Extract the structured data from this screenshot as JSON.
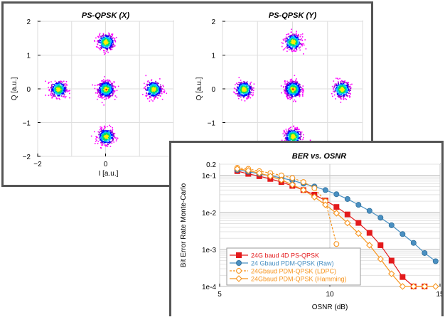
{
  "chart_data": [
    {
      "type": "scatter",
      "title": "PS-QPSK (X)",
      "xlabel": "I [a.u.]",
      "ylabel": "Q [a.u.]",
      "xlim": [
        -2,
        2
      ],
      "ylim": [
        -2,
        2
      ],
      "xticks": [
        "−2",
        "0"
      ],
      "yticks": [
        "2",
        "1",
        "0",
        "−1",
        "−2"
      ],
      "clusters": [
        {
          "x": 0,
          "y": 0,
          "relative_density": 1.0
        },
        {
          "x": 0,
          "y": 1.4,
          "relative_density": 0.6
        },
        {
          "x": 0,
          "y": -1.4,
          "relative_density": 0.6
        },
        {
          "x": -1.4,
          "y": 0,
          "relative_density": 0.6
        },
        {
          "x": 1.4,
          "y": 0,
          "relative_density": 0.6
        }
      ]
    },
    {
      "type": "scatter",
      "title": "PS-QPSK (Y)",
      "xlabel": "",
      "ylabel": "Q [a.u.]",
      "xlim": [
        -2,
        2
      ],
      "ylim": [
        -2,
        2
      ],
      "yticks": [
        "2",
        "1",
        "0",
        "−1"
      ],
      "clusters": [
        {
          "x": 0,
          "y": 0,
          "relative_density": 1.0
        },
        {
          "x": 0,
          "y": 1.4,
          "relative_density": 0.6
        },
        {
          "x": 0,
          "y": -1.4,
          "relative_density": 0.6
        },
        {
          "x": -1.4,
          "y": 0,
          "relative_density": 0.6
        },
        {
          "x": 1.4,
          "y": 0,
          "relative_density": 0.6
        }
      ]
    },
    {
      "type": "line",
      "title": "BER vs. OSNR",
      "xlabel": "OSNR (dB)",
      "ylabel": "Bit Error Rate Monte-Carlo",
      "xlim": [
        5,
        15
      ],
      "ylim": [
        0.0001,
        0.2
      ],
      "yscale": "log",
      "xticks": [
        "5",
        "10",
        "15"
      ],
      "yticks": [
        "0.2",
        "1e-1",
        "1e-2",
        "1e-3",
        "1e-4"
      ],
      "legend_position": "bottom-left",
      "series": [
        {
          "name": "24G baud 4D PS-QPSK",
          "color": "#e31a1c",
          "marker": "square",
          "x": [
            5.8,
            6.3,
            6.8,
            7.3,
            7.8,
            8.3,
            8.8,
            9.3,
            9.8,
            10.3,
            10.8,
            11.3,
            11.8,
            12.3,
            12.8,
            13.3,
            13.8,
            14.3
          ],
          "y": [
            0.13,
            0.11,
            0.095,
            0.08,
            0.066,
            0.052,
            0.04,
            0.03,
            0.021,
            0.014,
            0.0088,
            0.0052,
            0.0028,
            0.0013,
            0.0005,
            0.00018,
            0.0001,
            0.0001
          ]
        },
        {
          "name": "24 Gbaud PDM-QPSK (Raw)",
          "color": "#4a90c2",
          "marker": "circle",
          "x": [
            5.8,
            6.3,
            6.8,
            7.3,
            7.8,
            8.3,
            8.8,
            9.3,
            9.8,
            10.3,
            10.8,
            11.3,
            11.8,
            12.3,
            12.8,
            13.3,
            13.8,
            14.3,
            14.8
          ],
          "y": [
            0.14,
            0.125,
            0.11,
            0.098,
            0.085,
            0.073,
            0.06,
            0.05,
            0.04,
            0.031,
            0.023,
            0.016,
            0.011,
            0.0072,
            0.0045,
            0.0026,
            0.0015,
            0.0008,
            0.00048
          ]
        },
        {
          "name": "24Gbaud PDM-QPSK (LDPC)",
          "color": "#f7941d",
          "marker": "circle-open",
          "x": [
            5.8,
            6.3,
            6.8,
            7.3,
            7.8,
            8.3,
            8.8,
            9.3,
            9.8,
            10.3
          ],
          "y": [
            0.16,
            0.15,
            0.13,
            0.115,
            0.1,
            0.085,
            0.066,
            0.045,
            0.02,
            0.0014
          ]
        },
        {
          "name": "24Gbaud PDM-QPSK (Hamming)",
          "color": "#f7941d",
          "marker": "diamond-open",
          "x": [
            5.8,
            6.3,
            6.8,
            7.3,
            7.8,
            8.3,
            8.8,
            9.3,
            9.8,
            10.3,
            10.8,
            11.3,
            11.8,
            12.3,
            12.8,
            13.3,
            13.8,
            14.3,
            14.8
          ],
          "y": [
            0.15,
            0.135,
            0.115,
            0.095,
            0.075,
            0.056,
            0.04,
            0.026,
            0.016,
            0.0095,
            0.0052,
            0.0027,
            0.0013,
            0.00055,
            0.00022,
            0.0001,
            0.0001,
            0.0001,
            0.0001
          ]
        }
      ]
    }
  ]
}
